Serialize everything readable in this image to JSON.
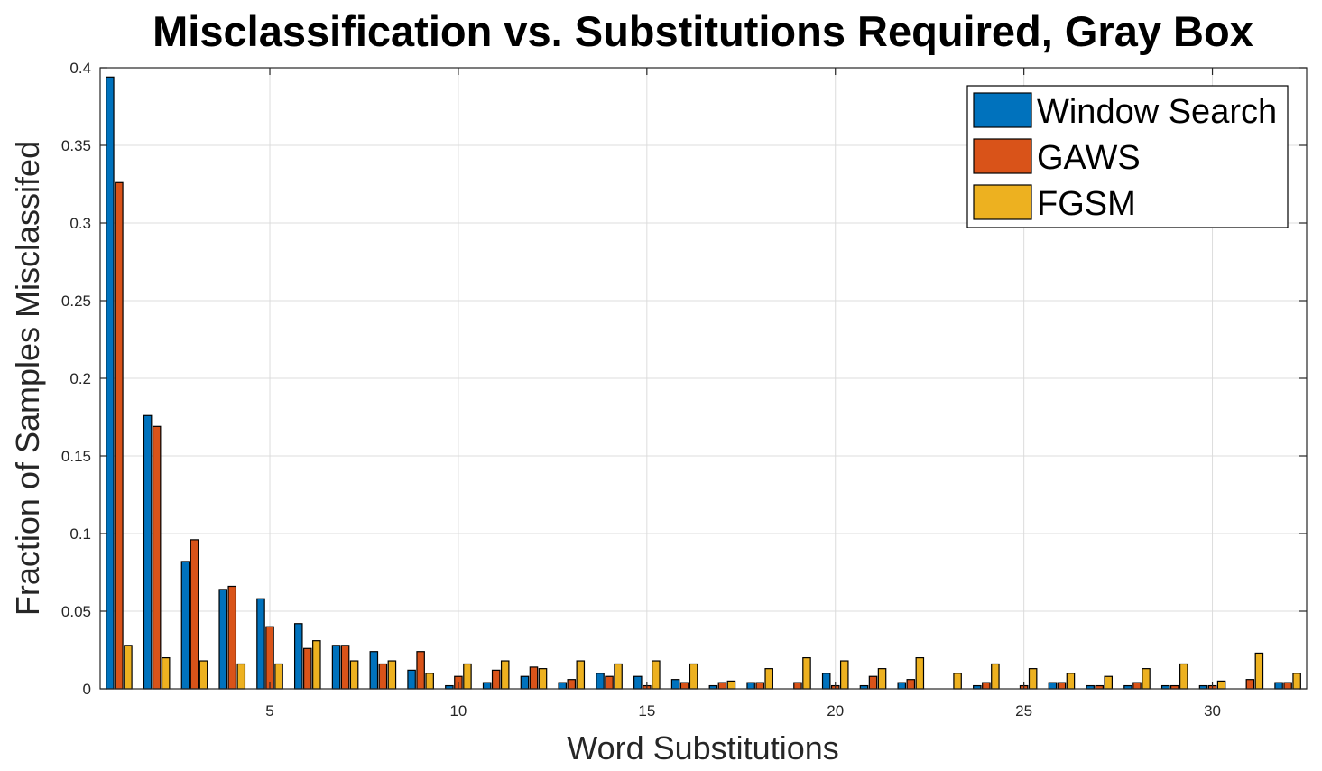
{
  "chart_data": {
    "type": "bar",
    "title": "Misclassification vs. Substitutions Required, Gray Box",
    "xlabel": "Word Substitutions",
    "ylabel": "Fraction of Samples Misclassifed",
    "xlim": [
      0.5,
      32.5
    ],
    "ylim": [
      0,
      0.4
    ],
    "xticks": [
      5,
      10,
      15,
      20,
      25,
      30
    ],
    "yticks": [
      0,
      0.05,
      0.1,
      0.15,
      0.2,
      0.25,
      0.3,
      0.35,
      0.4
    ],
    "ytick_labels": [
      "0",
      "0.05",
      "0.1",
      "0.15",
      "0.2",
      "0.25",
      "0.3",
      "0.35",
      "0.4"
    ],
    "grid": true,
    "legend_position": "top-right",
    "categories": [
      1,
      2,
      3,
      4,
      5,
      6,
      7,
      8,
      9,
      10,
      11,
      12,
      13,
      14,
      15,
      16,
      17,
      18,
      19,
      20,
      21,
      22,
      23,
      24,
      25,
      26,
      27,
      28,
      29,
      30,
      31,
      32
    ],
    "series": [
      {
        "name": "Window Search",
        "color": "#0072BD",
        "values": [
          0.394,
          0.176,
          0.082,
          0.064,
          0.058,
          0.042,
          0.028,
          0.024,
          0.012,
          0.002,
          0.004,
          0.008,
          0.004,
          0.01,
          0.008,
          0.006,
          0.002,
          0.004,
          0.0,
          0.01,
          0.002,
          0.004,
          0.0,
          0.002,
          0.0,
          0.004,
          0.002,
          0.002,
          0.002,
          0.002,
          0.0,
          0.004
        ]
      },
      {
        "name": "GAWS",
        "color": "#D95319",
        "values": [
          0.326,
          0.169,
          0.096,
          0.066,
          0.04,
          0.026,
          0.028,
          0.016,
          0.024,
          0.008,
          0.012,
          0.014,
          0.006,
          0.008,
          0.002,
          0.004,
          0.004,
          0.004,
          0.004,
          0.002,
          0.008,
          0.006,
          0.0,
          0.004,
          0.002,
          0.004,
          0.002,
          0.004,
          0.002,
          0.002,
          0.006,
          0.004
        ]
      },
      {
        "name": "FGSM",
        "color": "#EDB120",
        "values": [
          0.028,
          0.02,
          0.018,
          0.016,
          0.016,
          0.031,
          0.018,
          0.018,
          0.01,
          0.016,
          0.018,
          0.013,
          0.018,
          0.016,
          0.018,
          0.016,
          0.005,
          0.013,
          0.02,
          0.018,
          0.013,
          0.02,
          0.01,
          0.016,
          0.013,
          0.01,
          0.008,
          0.013,
          0.016,
          0.005,
          0.023,
          0.01
        ]
      }
    ]
  }
}
